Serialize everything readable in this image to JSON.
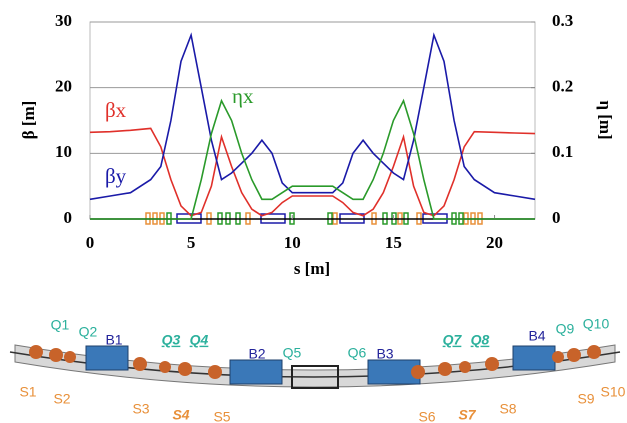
{
  "chart_data": {
    "type": "line",
    "xlabel": "s [m]",
    "ylabel": "β [m]",
    "y2label": "η [m]",
    "x": [
      0,
      1,
      2,
      3,
      3.5,
      4,
      4.5,
      5,
      5.5,
      6,
      6.5,
      7,
      7.5,
      8,
      8.5,
      9,
      9.5,
      10,
      11,
      12,
      12.5,
      13,
      13.5,
      14,
      14.5,
      15,
      15.5,
      16,
      16.5,
      17,
      17.5,
      18,
      18.5,
      19,
      20,
      21,
      22
    ],
    "xlim": [
      0,
      22
    ],
    "xticks": [
      0,
      5,
      10,
      15,
      20
    ],
    "ylim": [
      0,
      30
    ],
    "yticks": [
      0,
      10,
      20,
      30
    ],
    "y2lim": [
      0,
      0.3
    ],
    "y2ticks": [
      0,
      0.1,
      0.2,
      0.3
    ],
    "grid": true,
    "series": [
      {
        "name": "βx",
        "color": "#e0302a",
        "values": [
          13.2,
          13.3,
          13.5,
          13.8,
          11,
          6,
          2,
          0.5,
          1,
          5,
          12.5,
          8,
          4,
          1.5,
          0.5,
          1,
          2.5,
          3.5,
          3.5,
          3.5,
          2.5,
          1,
          0.5,
          1.5,
          4,
          8,
          12.5,
          5,
          1,
          0.5,
          2,
          6,
          11,
          13.3,
          13.2,
          13.1,
          13
        ]
      },
      {
        "name": "βy",
        "color": "#1a1aa8",
        "values": [
          3,
          3.5,
          4,
          6,
          8,
          15,
          24,
          28,
          20,
          12,
          6,
          7,
          8.5,
          10,
          12,
          10,
          5.5,
          4,
          4,
          4,
          5.5,
          10,
          12,
          10,
          8.5,
          7,
          6,
          12,
          20,
          28,
          24,
          15,
          8,
          6,
          4,
          3.5,
          3
        ]
      },
      {
        "name": "ηx",
        "color": "#2a9a2a",
        "axis": "y2",
        "values": [
          0,
          0,
          0,
          0,
          0,
          0,
          0,
          0,
          0.06,
          0.13,
          0.18,
          0.15,
          0.1,
          0.06,
          0.03,
          0.03,
          0.04,
          0.05,
          0.05,
          0.05,
          0.04,
          0.03,
          0.03,
          0.06,
          0.1,
          0.15,
          0.18,
          0.13,
          0.06,
          0,
          0,
          0,
          0,
          0,
          0,
          0,
          0
        ]
      }
    ]
  },
  "schematic": {
    "quadrupoles": {
      "color": "#2bb09c",
      "labels": [
        {
          "label": "Q1"
        },
        {
          "label": "Q2"
        },
        {
          "label": "Q3",
          "italic": true
        },
        {
          "label": "Q4",
          "italic": true
        },
        {
          "label": "Q5"
        },
        {
          "label": "Q6"
        },
        {
          "label": "Q7",
          "italic": true
        },
        {
          "label": "Q8",
          "italic": true
        },
        {
          "label": "Q9"
        },
        {
          "label": "Q10"
        }
      ]
    },
    "dipoles": {
      "color": "#22239a",
      "labels": [
        {
          "label": "B1"
        },
        {
          "label": "B2"
        },
        {
          "label": "B3"
        },
        {
          "label": "B4"
        }
      ]
    },
    "sextupoles": {
      "color": "#e8903a",
      "labels": [
        {
          "label": "S1"
        },
        {
          "label": "S2"
        },
        {
          "label": "S3"
        },
        {
          "label": "S4",
          "italic": true
        },
        {
          "label": "S5"
        },
        {
          "label": "S6"
        },
        {
          "label": "S7",
          "italic": true
        },
        {
          "label": "S8"
        },
        {
          "label": "S9"
        },
        {
          "label": "S10"
        }
      ]
    }
  }
}
